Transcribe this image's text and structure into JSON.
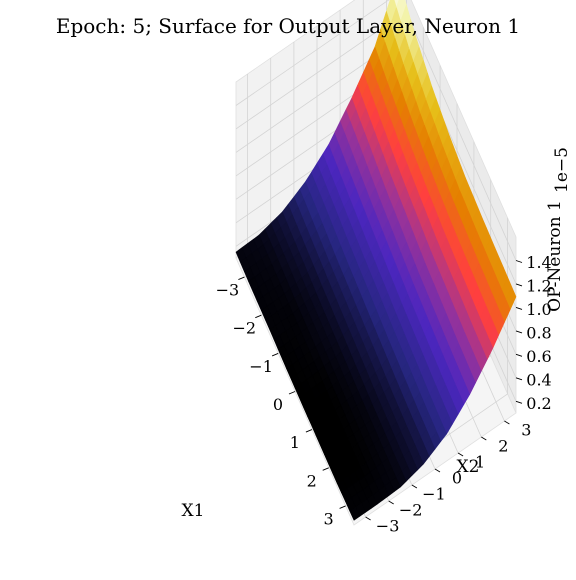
{
  "chart_data": {
    "type": "surface",
    "title": "Epoch: 5; Surface for Output Layer, Neuron 1",
    "xlabel": "X1",
    "ylabel": "X2",
    "zlabel": "OP-Neuron 1",
    "z_offset_label": "1e−5",
    "xlim": [
      -3.5,
      3.5
    ],
    "ylim": [
      -3.5,
      3.5
    ],
    "zlim": [
      0.1,
      1.6
    ],
    "x_ticks": [
      -3,
      -2,
      -1,
      0,
      1,
      2,
      3
    ],
    "x_tick_labels": [
      "−3",
      "−2",
      "−1",
      "0",
      "1",
      "2",
      "3"
    ],
    "y_ticks": [
      -3,
      -2,
      -1,
      0,
      1,
      2,
      3
    ],
    "y_tick_labels": [
      "−3",
      "−2",
      "−1",
      "0",
      "1",
      "2",
      "3"
    ],
    "z_ticks": [
      0.2,
      0.4,
      0.6,
      0.8,
      1.0,
      1.2,
      1.4
    ],
    "z_tick_labels": [
      "0.2",
      "0.4",
      "0.6",
      "0.8",
      "1.0",
      "1.2",
      "1.4"
    ],
    "grid": true,
    "colormap": "CMRmap",
    "colormap_stops": [
      "#000000",
      "#26267f",
      "#4c26bf",
      "#993399",
      "#ff3f3f",
      "#e57f00",
      "#e6bf19",
      "#f2f2a0",
      "#ffffff"
    ],
    "grid_x": [
      -3.5,
      -2.5,
      -1.5,
      -0.5,
      0.5,
      1.5,
      2.5,
      3.5
    ],
    "grid_y": [
      -3.5,
      -2.5,
      -1.5,
      -0.5,
      0.5,
      1.5,
      2.5,
      3.5
    ],
    "z_values": [
      [
        0.15,
        0.16,
        0.22,
        0.34,
        0.52,
        0.78,
        1.08,
        1.55
      ],
      [
        0.14,
        0.15,
        0.2,
        0.31,
        0.48,
        0.72,
        1.0,
        1.38
      ],
      [
        0.14,
        0.14,
        0.18,
        0.28,
        0.44,
        0.66,
        0.93,
        1.26
      ],
      [
        0.13,
        0.14,
        0.17,
        0.26,
        0.41,
        0.62,
        0.88,
        1.18
      ],
      [
        0.13,
        0.13,
        0.16,
        0.24,
        0.38,
        0.58,
        0.84,
        1.13
      ],
      [
        0.13,
        0.13,
        0.15,
        0.22,
        0.36,
        0.56,
        0.82,
        1.11
      ],
      [
        0.13,
        0.13,
        0.15,
        0.21,
        0.34,
        0.54,
        0.8,
        1.1
      ],
      [
        0.14,
        0.14,
        0.15,
        0.21,
        0.33,
        0.53,
        0.79,
        1.09
      ]
    ]
  }
}
